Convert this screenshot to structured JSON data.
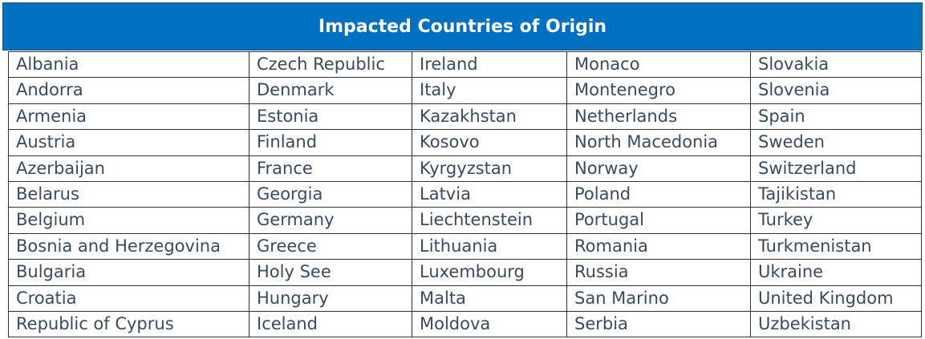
{
  "table": {
    "title": "Impacted Countries of Origin",
    "rows": [
      [
        "Albania",
        "Czech Republic",
        "Ireland",
        "Monaco",
        "Slovakia"
      ],
      [
        "Andorra",
        "Denmark",
        "Italy",
        "Montenegro",
        "Slovenia"
      ],
      [
        "Armenia",
        "Estonia",
        "Kazakhstan",
        "Netherlands",
        "Spain"
      ],
      [
        "Austria",
        "Finland",
        "Kosovo",
        "North Macedonia",
        "Sweden"
      ],
      [
        "Azerbaijan",
        "France",
        "Kyrgyzstan",
        "Norway",
        "Switzerland"
      ],
      [
        "Belarus",
        "Georgia",
        "Latvia",
        "Poland",
        "Tajikistan"
      ],
      [
        "Belgium",
        "Germany",
        "Liechtenstein",
        "Portugal",
        "Turkey"
      ],
      [
        "Bosnia and Herzegovina",
        "Greece",
        "Lithuania",
        "Romania",
        "Turkmenistan"
      ],
      [
        "Bulgaria",
        "Holy See",
        "Luxembourg",
        "Russia",
        "Ukraine"
      ],
      [
        "Croatia",
        "Hungary",
        "Malta",
        "San Marino",
        "United Kingdom"
      ],
      [
        "Republic of Cyprus",
        "Iceland",
        "Moldova",
        "Serbia",
        "Uzbekistan"
      ]
    ]
  }
}
